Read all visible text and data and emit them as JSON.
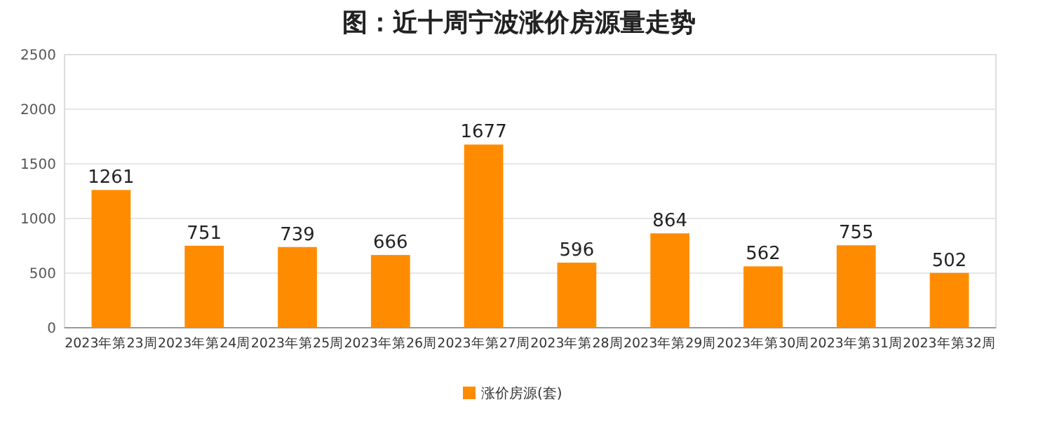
{
  "chart_data": {
    "type": "bar",
    "title": "图：近十周宁波涨价房源量走势",
    "categories": [
      "2023年第23周",
      "2023年第24周",
      "2023年第25周",
      "2023年第26周",
      "2023年第27周",
      "2023年第28周",
      "2023年第29周",
      "2023年第30周",
      "2023年第31周",
      "2023年第32周"
    ],
    "series": [
      {
        "name": "涨价房源(套)",
        "color": "#ff8c00",
        "values": [
          1261,
          751,
          739,
          666,
          1677,
          596,
          864,
          562,
          755,
          502
        ]
      }
    ],
    "ylim": [
      0,
      2500
    ],
    "yticks": [
      0,
      500,
      1000,
      1500,
      2000,
      2500
    ],
    "grid": "y",
    "legend": "bottom",
    "data_labels": true
  }
}
